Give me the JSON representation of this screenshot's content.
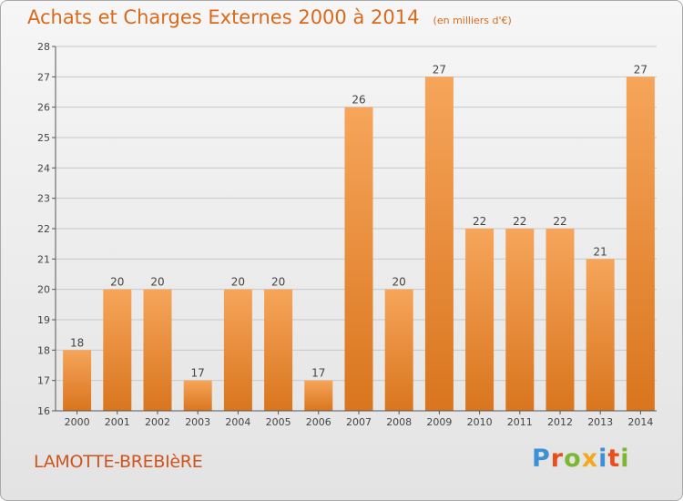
{
  "chart_data": {
    "type": "bar",
    "title": "Achats et Charges Externes 2000 à 2014",
    "subtitle": "(en milliers d'€)",
    "categories": [
      "2000",
      "2001",
      "2002",
      "2003",
      "2004",
      "2005",
      "2006",
      "2007",
      "2008",
      "2009",
      "2010",
      "2011",
      "2012",
      "2013",
      "2014"
    ],
    "values": [
      18,
      20,
      20,
      17,
      20,
      20,
      17,
      26,
      20,
      27,
      22,
      22,
      22,
      21,
      27
    ],
    "ylim": [
      16,
      28
    ],
    "yticks": [
      16,
      17,
      18,
      19,
      20,
      21,
      22,
      23,
      24,
      25,
      26,
      27,
      28
    ],
    "grid": true,
    "bar_color_light": "#f6a55a",
    "bar_color_dark": "#d9751e",
    "grid_color": "#c8c8c8"
  },
  "footer": {
    "commune": "LAMOTTE-BREBIèRE",
    "brand_letters": [
      {
        "ch": "P",
        "color": "#3d8fd6"
      },
      {
        "ch": "r",
        "color": "#e94e1b"
      },
      {
        "ch": "o",
        "color": "#7cb82f"
      },
      {
        "ch": "x",
        "color": "#f4a81d"
      },
      {
        "ch": "i",
        "color": "#3d8fd6"
      },
      {
        "ch": "t",
        "color": "#e94e1b"
      },
      {
        "ch": "i",
        "color": "#7cb82f"
      }
    ]
  },
  "colors": {
    "title": "#d96a1c",
    "commune": "#d0541c"
  }
}
